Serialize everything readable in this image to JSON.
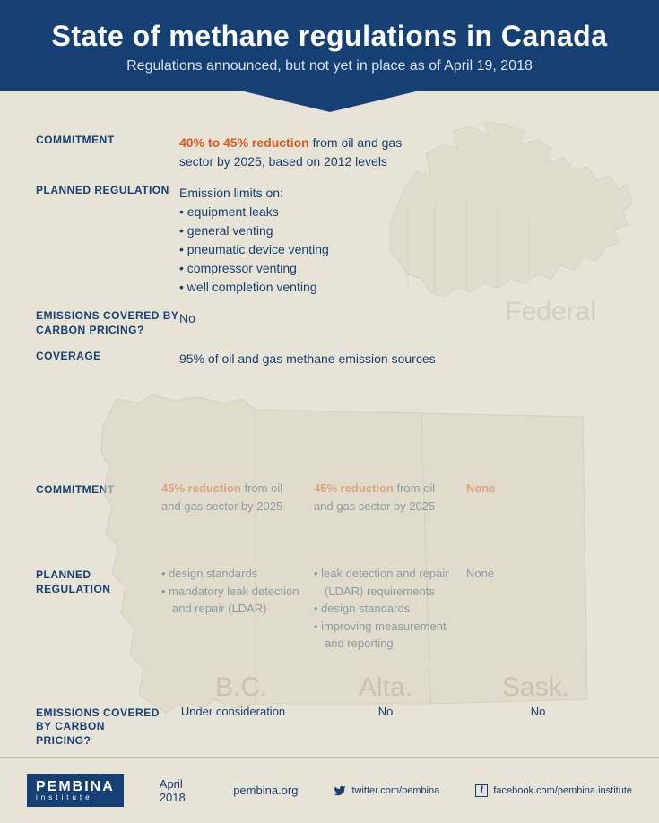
{
  "header": {
    "title": "State of methane regulations in Canada",
    "subtitle": "Regulations announced, but not yet in place as of April 19, 2018"
  },
  "federal": {
    "map_label": "Federal",
    "commitment_label": "COMMITMENT",
    "commitment_highlight": "40% to 45% reduction",
    "commitment_rest": " from oil and gas sector by 2025, based on 2012 levels",
    "planned_label": "PLANNED REGULATION",
    "planned_intro": "Emission limits on:",
    "planned_items": [
      "equipment leaks",
      "general venting",
      "pneumatic device venting",
      "compressor venting",
      "well completion venting"
    ],
    "carbon_label": "EMISSIONS COVERED BY CARBON PRICING?",
    "carbon_value": "No",
    "coverage_label": "COVERAGE",
    "coverage_value": "95% of oil and gas methane emission sources"
  },
  "provinces": {
    "commitment_label": "COMMITMENT",
    "planned_label": "PLANNED REGULATION",
    "carbon_label": "EMISSIONS COVERED BY CARBON PRICING?",
    "bc": {
      "name": "B.C.",
      "commitment_highlight": "45% reduction",
      "commitment_rest": " from oil and gas sector by 2025",
      "planned_items": [
        "design standards",
        "mandatory leak detection and repair (LDAR)"
      ],
      "carbon": "Under consideration"
    },
    "alta": {
      "name": "Alta.",
      "commitment_highlight": "45% reduction",
      "commitment_rest": " from oil and gas sector by 2025",
      "planned_items": [
        "leak detection and repair (LDAR) requirements",
        "design standards",
        "improving measurement and reporting"
      ],
      "carbon": "No"
    },
    "sask": {
      "name": "Sask.",
      "commitment_highlight": "None",
      "commitment_rest": "",
      "planned_text": "None",
      "carbon": "No"
    }
  },
  "footer": {
    "logo_main": "PEMBINA",
    "logo_sub": "institute",
    "date": "April 2018",
    "url": "pembina.org",
    "twitter": "twitter.com/pembina",
    "facebook": "facebook.com/pembina.institute"
  },
  "colors": {
    "header_bg": "#164074",
    "body_bg": "#e8e3d7",
    "highlight": "#d85a1f",
    "text": "#164074",
    "map_fill": "#ddd6c5",
    "map_stroke": "#c9c2b0"
  }
}
